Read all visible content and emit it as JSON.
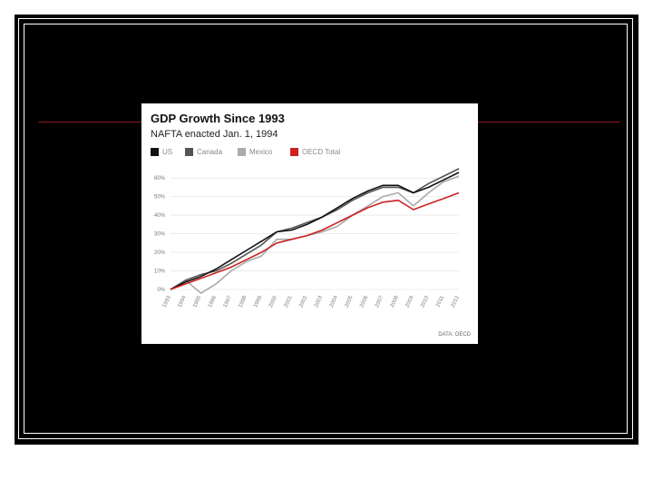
{
  "chart_data": {
    "type": "line",
    "title": "GDP Growth Since 1993",
    "subtitle": "NAFTA enacted Jan. 1, 1994",
    "source": "DATA: OECD",
    "x": [
      "1993",
      "1994",
      "1995",
      "1996",
      "1997",
      "1998",
      "1999",
      "2000",
      "2001",
      "2002",
      "2003",
      "2004",
      "2005",
      "2006",
      "2007",
      "2008",
      "2009",
      "2010",
      "2011",
      "2012"
    ],
    "y_ticks": [
      "0%",
      "10%",
      "20%",
      "30%",
      "40%",
      "50%",
      "60%"
    ],
    "ylim": [
      0,
      63
    ],
    "grid": true,
    "legend_position": "top-left",
    "series": [
      {
        "name": "US",
        "color": "#111111",
        "values": [
          0,
          4,
          7,
          11,
          16,
          21,
          26,
          31,
          32,
          35,
          39,
          44,
          49,
          53,
          56,
          56,
          52,
          55,
          59,
          63
        ]
      },
      {
        "name": "Canada",
        "color": "#555555",
        "values": [
          0,
          5,
          8,
          10,
          14,
          19,
          24,
          31,
          33,
          36,
          39,
          43,
          48,
          52,
          55,
          55,
          52,
          57,
          61,
          65
        ]
      },
      {
        "name": "Mexico",
        "color": "#aaaaaa",
        "values": [
          0,
          5,
          -2,
          3,
          10,
          15,
          18,
          27,
          27,
          29,
          31,
          34,
          40,
          45,
          50,
          52,
          45,
          52,
          58,
          61
        ]
      },
      {
        "name": "OECD Total",
        "color": "#cc2222",
        "values": [
          0,
          3,
          6,
          9,
          12,
          16,
          20,
          25,
          27,
          29,
          32,
          36,
          40,
          44,
          47,
          48,
          43,
          46,
          49,
          52
        ]
      }
    ]
  }
}
